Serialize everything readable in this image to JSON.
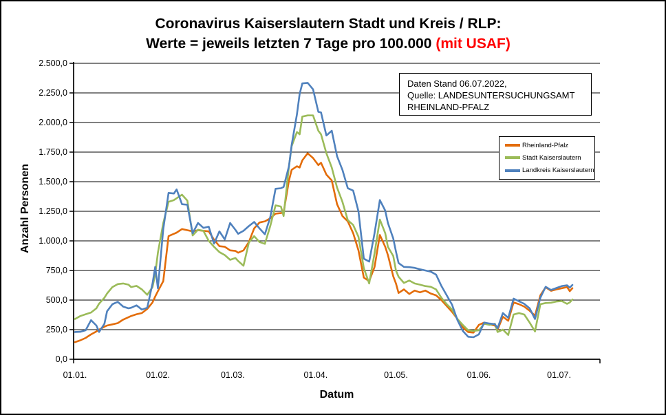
{
  "title": {
    "line1": "Coronavirus Kaiserslautern Stadt und Kreis / RLP:",
    "line2_black": "Werte = jeweils letzten 7 Tage pro 100.000 ",
    "line2_red": "(mit USAF)"
  },
  "info_box": {
    "line1": "Daten Stand 06.07.2022,",
    "line2": "Quelle: LANDESUNTERSUCHUNGSAMT",
    "line3": "RHEINLAND-PFALZ"
  },
  "axes": {
    "y_label": "Anzahl Personen",
    "x_label": "Datum",
    "y_ticks": [
      {
        "label": "0,0",
        "value": 0
      },
      {
        "label": "250,0",
        "value": 250
      },
      {
        "label": "500,0",
        "value": 500
      },
      {
        "label": "750,0",
        "value": 750
      },
      {
        "label": "1.000,0",
        "value": 1000
      },
      {
        "label": "1.250,0",
        "value": 1250
      },
      {
        "label": "1.500,0",
        "value": 1500
      },
      {
        "label": "1.750,0",
        "value": 1750
      },
      {
        "label": "2.000,0",
        "value": 2000
      },
      {
        "label": "2.250,0",
        "value": 2250
      },
      {
        "label": "2.500,0",
        "value": 2500
      }
    ],
    "x_ticks": [
      {
        "label": "01.01.",
        "day": 0
      },
      {
        "label": "01.02.",
        "day": 31
      },
      {
        "label": "01.03.",
        "day": 59
      },
      {
        "label": "01.04.",
        "day": 90
      },
      {
        "label": "01.05.",
        "day": 120
      },
      {
        "label": "01.06.",
        "day": 151
      },
      {
        "label": "01.07.",
        "day": 181
      }
    ]
  },
  "legend": [
    {
      "label": "Rheinland-Pfalz",
      "color": "#E36C09"
    },
    {
      "label": "Stadt Kaiserslautern",
      "color": "#9BBB59"
    },
    {
      "label": "Landkreis Kaiserslautern",
      "color": "#4F81BD"
    }
  ],
  "chart_data": {
    "type": "line",
    "title": "Coronavirus Kaiserslautern Stadt und Kreis / RLP: Werte = jeweils letzten 7 Tage pro 100.000 (mit USAF)",
    "xlabel": "Datum",
    "ylabel": "Anzahl Personen",
    "ylim": [
      0,
      2500
    ],
    "grid": "horizontal",
    "legend_position": "right",
    "x_unit": "days since 01.01.2022 (last point = 06.07.2022)",
    "x": [
      0,
      2,
      4,
      6,
      8,
      9,
      11,
      12,
      14,
      16,
      18,
      20,
      21,
      23,
      25,
      27,
      29,
      30,
      31,
      33,
      35,
      37,
      38,
      40,
      42,
      44,
      46,
      48,
      50,
      52,
      54,
      56,
      58,
      60,
      61,
      63,
      65,
      67,
      69,
      71,
      73,
      75,
      77,
      78,
      80,
      81,
      83,
      84,
      85,
      87,
      89,
      91,
      92,
      94,
      96,
      98,
      100,
      102,
      104,
      106,
      108,
      110,
      112,
      114,
      116,
      117,
      119,
      120,
      121,
      123,
      125,
      127,
      129,
      131,
      133,
      135,
      137,
      139,
      141,
      143,
      145,
      147,
      149,
      151,
      153,
      155,
      157,
      158,
      160,
      162,
      164,
      166,
      168,
      170,
      172,
      174,
      176,
      178,
      180,
      182,
      184,
      185,
      186
    ],
    "series": [
      {
        "name": "Rheinland-Pfalz",
        "color": "#E36C09",
        "values": [
          145,
          160,
          180,
          210,
          235,
          250,
          275,
          285,
          295,
          305,
          335,
          355,
          365,
          380,
          390,
          425,
          480,
          530,
          575,
          660,
          1040,
          1060,
          1070,
          1100,
          1090,
          1080,
          1090,
          1085,
          1080,
          1010,
          955,
          950,
          920,
          915,
          900,
          920,
          990,
          1105,
          1155,
          1165,
          1190,
          1230,
          1235,
          1240,
          1510,
          1600,
          1630,
          1620,
          1680,
          1740,
          1700,
          1640,
          1660,
          1560,
          1510,
          1310,
          1210,
          1165,
          1065,
          920,
          690,
          660,
          780,
          1050,
          950,
          880,
          700,
          640,
          560,
          590,
          552,
          580,
          565,
          580,
          555,
          540,
          500,
          450,
          400,
          340,
          270,
          230,
          225,
          290,
          310,
          295,
          285,
          250,
          360,
          325,
          480,
          465,
          445,
          410,
          368,
          540,
          608,
          578,
          590,
          600,
          610,
          575,
          600
        ]
      },
      {
        "name": "Stadt Kaiserslautern",
        "color": "#9BBB59",
        "values": [
          340,
          365,
          380,
          395,
          430,
          470,
          520,
          555,
          610,
          635,
          640,
          630,
          610,
          620,
          590,
          545,
          610,
          720,
          900,
          1150,
          1330,
          1345,
          1360,
          1390,
          1340,
          1046,
          1094,
          1085,
          1000,
          950,
          905,
          880,
          840,
          855,
          830,
          790,
          985,
          1040,
          990,
          975,
          1125,
          1300,
          1290,
          1210,
          1630,
          1800,
          1920,
          1900,
          2050,
          2060,
          2060,
          1930,
          1900,
          1740,
          1620,
          1450,
          1330,
          1175,
          1135,
          1035,
          770,
          640,
          895,
          1180,
          1065,
          950,
          872,
          750,
          697,
          645,
          665,
          640,
          630,
          618,
          612,
          590,
          520,
          465,
          420,
          340,
          290,
          245,
          240,
          245,
          300,
          290,
          300,
          230,
          250,
          205,
          378,
          390,
          378,
          310,
          235,
          465,
          475,
          478,
          488,
          492,
          468,
          480,
          505
        ]
      },
      {
        "name": "Landkreis Kaiserslautern",
        "color": "#4F81BD",
        "values": [
          230,
          232,
          245,
          330,
          285,
          230,
          300,
          405,
          465,
          485,
          445,
          430,
          435,
          455,
          420,
          435,
          640,
          780,
          600,
          1100,
          1405,
          1400,
          1435,
          1310,
          1305,
          1064,
          1151,
          1110,
          1120,
          977,
          1080,
          1012,
          1151,
          1093,
          1060,
          1085,
          1125,
          1160,
          1105,
          1056,
          1200,
          1440,
          1445,
          1455,
          1630,
          1810,
          2070,
          2240,
          2330,
          2335,
          2280,
          2090,
          2085,
          1890,
          1930,
          1715,
          1600,
          1445,
          1425,
          1250,
          850,
          825,
          1065,
          1345,
          1256,
          1151,
          1020,
          910,
          813,
          780,
          778,
          772,
          760,
          750,
          740,
          715,
          620,
          540,
          460,
          330,
          240,
          190,
          186,
          210,
          310,
          302,
          296,
          262,
          390,
          350,
          512,
          490,
          468,
          430,
          340,
          520,
          612,
          585,
          602,
          618,
          625,
          605,
          628
        ]
      }
    ]
  }
}
